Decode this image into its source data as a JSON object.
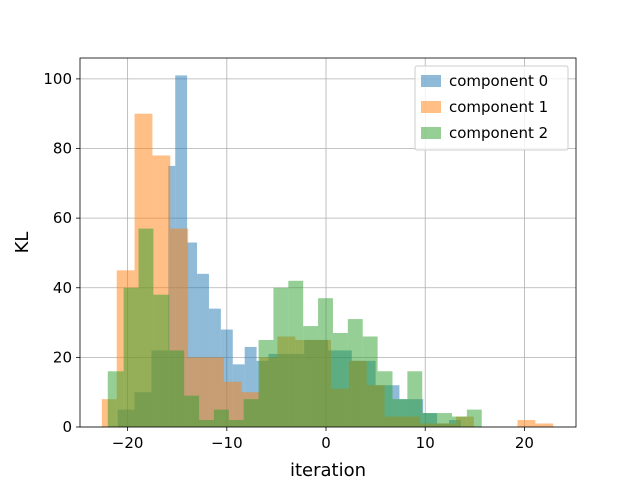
{
  "chart_data": {
    "type": "bar",
    "subtype": "overlapping-histogram",
    "xlabel": "iteration",
    "ylabel": "KL",
    "xlim": [
      -24.8,
      25.2
    ],
    "ylim": [
      0,
      106
    ],
    "xticks": [
      -20,
      -10,
      0,
      10,
      20
    ],
    "xtick_labels": [
      "−20",
      "−10",
      "0",
      "10",
      "20"
    ],
    "yticks": [
      0,
      20,
      40,
      60,
      80,
      100
    ],
    "ytick_labels": [
      "0",
      "20",
      "40",
      "60",
      "80",
      "100"
    ],
    "grid": true,
    "legend_position": "top-right",
    "bar_alpha": 0.5,
    "series": [
      {
        "name": "component 0",
        "color": "#1f77b4",
        "bins": [
          {
            "x0": -21.0,
            "x1": -19.3,
            "value": 5
          },
          {
            "x0": -19.3,
            "x1": -17.6,
            "value": 10
          },
          {
            "x0": -17.6,
            "x1": -15.9,
            "value": 22
          },
          {
            "x0": -15.9,
            "x1": -15.2,
            "value": 75
          },
          {
            "x0": -15.2,
            "x1": -14.0,
            "value": 101
          },
          {
            "x0": -14.0,
            "x1": -13.0,
            "value": 53
          },
          {
            "x0": -13.0,
            "x1": -11.8,
            "value": 44
          },
          {
            "x0": -11.8,
            "x1": -10.6,
            "value": 34
          },
          {
            "x0": -10.6,
            "x1": -9.4,
            "value": 28
          },
          {
            "x0": -9.4,
            "x1": -8.2,
            "value": 18
          },
          {
            "x0": -8.2,
            "x1": -7.0,
            "value": 23
          },
          {
            "x0": -7.0,
            "x1": -5.8,
            "value": 19
          },
          {
            "x0": -5.8,
            "x1": -2.2,
            "value": 21
          },
          {
            "x0": -2.2,
            "x1": 0.2,
            "value": 25
          },
          {
            "x0": 0.2,
            "x1": 2.6,
            "value": 22
          },
          {
            "x0": 2.6,
            "x1": 5.0,
            "value": 19
          },
          {
            "x0": 5.0,
            "x1": 7.4,
            "value": 12
          },
          {
            "x0": 7.4,
            "x1": 9.8,
            "value": 8
          },
          {
            "x0": 9.8,
            "x1": 11.2,
            "value": 4
          },
          {
            "x0": 11.2,
            "x1": 12.4,
            "value": 1
          },
          {
            "x0": 12.4,
            "x1": 13.6,
            "value": 2
          }
        ]
      },
      {
        "name": "component 1",
        "color": "#ff7f0e",
        "bins": [
          {
            "x0": -22.6,
            "x1": -21.1,
            "value": 8
          },
          {
            "x0": -21.1,
            "x1": -19.3,
            "value": 45
          },
          {
            "x0": -19.3,
            "x1": -17.5,
            "value": 90
          },
          {
            "x0": -17.5,
            "x1": -15.7,
            "value": 78
          },
          {
            "x0": -15.7,
            "x1": -13.9,
            "value": 57
          },
          {
            "x0": -13.9,
            "x1": -12.1,
            "value": 20
          },
          {
            "x0": -12.1,
            "x1": -10.3,
            "value": 20
          },
          {
            "x0": -10.3,
            "x1": -8.5,
            "value": 13
          },
          {
            "x0": -8.5,
            "x1": -6.7,
            "value": 10
          },
          {
            "x0": -6.7,
            "x1": -4.9,
            "value": 20
          },
          {
            "x0": -4.9,
            "x1": -3.1,
            "value": 26
          },
          {
            "x0": -3.1,
            "x1": -1.3,
            "value": 25
          },
          {
            "x0": -1.3,
            "x1": 0.5,
            "value": 25
          },
          {
            "x0": 0.5,
            "x1": 2.3,
            "value": 11
          },
          {
            "x0": 2.3,
            "x1": 4.1,
            "value": 19
          },
          {
            "x0": 4.1,
            "x1": 5.9,
            "value": 12
          },
          {
            "x0": 5.9,
            "x1": 7.7,
            "value": 3
          },
          {
            "x0": 7.7,
            "x1": 9.5,
            "value": 3
          },
          {
            "x0": 9.5,
            "x1": 11.3,
            "value": 1
          },
          {
            "x0": 11.3,
            "x1": 13.1,
            "value": 1
          },
          {
            "x0": 13.1,
            "x1": 14.9,
            "value": 3
          },
          {
            "x0": 19.3,
            "x1": 21.1,
            "value": 2
          },
          {
            "x0": 21.1,
            "x1": 22.9,
            "value": 1
          }
        ]
      },
      {
        "name": "component 2",
        "color": "#2ca02c",
        "bins": [
          {
            "x0": -22.0,
            "x1": -20.4,
            "value": 16
          },
          {
            "x0": -20.4,
            "x1": -18.9,
            "value": 40
          },
          {
            "x0": -18.9,
            "x1": -17.4,
            "value": 57
          },
          {
            "x0": -17.4,
            "x1": -15.8,
            "value": 38
          },
          {
            "x0": -15.8,
            "x1": -14.3,
            "value": 22
          },
          {
            "x0": -14.3,
            "x1": -12.8,
            "value": 9
          },
          {
            "x0": -12.8,
            "x1": -11.3,
            "value": 2
          },
          {
            "x0": -11.3,
            "x1": -9.8,
            "value": 5
          },
          {
            "x0": -9.8,
            "x1": -8.3,
            "value": 2
          },
          {
            "x0": -8.3,
            "x1": -6.8,
            "value": 8
          },
          {
            "x0": -6.8,
            "x1": -5.3,
            "value": 25
          },
          {
            "x0": -5.3,
            "x1": -3.8,
            "value": 40
          },
          {
            "x0": -3.8,
            "x1": -2.3,
            "value": 42
          },
          {
            "x0": -2.3,
            "x1": -0.8,
            "value": 29
          },
          {
            "x0": -0.8,
            "x1": 0.7,
            "value": 37
          },
          {
            "x0": 0.7,
            "x1": 2.2,
            "value": 27
          },
          {
            "x0": 2.2,
            "x1": 3.7,
            "value": 31
          },
          {
            "x0": 3.7,
            "x1": 5.2,
            "value": 26
          },
          {
            "x0": 5.2,
            "x1": 6.7,
            "value": 16
          },
          {
            "x0": 6.7,
            "x1": 8.2,
            "value": 8
          },
          {
            "x0": 8.2,
            "x1": 9.7,
            "value": 16
          },
          {
            "x0": 9.7,
            "x1": 11.2,
            "value": 4
          },
          {
            "x0": 11.2,
            "x1": 12.7,
            "value": 4
          },
          {
            "x0": 12.7,
            "x1": 14.2,
            "value": 3
          },
          {
            "x0": 14.2,
            "x1": 15.7,
            "value": 5
          }
        ]
      }
    ]
  }
}
